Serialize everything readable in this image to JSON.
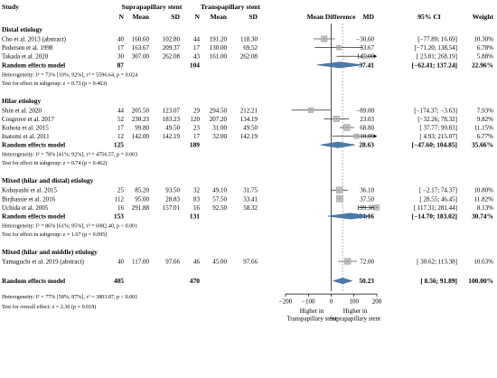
{
  "chart_data": {
    "type": "forest",
    "header": {
      "study": "Study",
      "group1": "Suprapapillary stent",
      "group2": "Transpapillary stent",
      "n": "N",
      "mean": "Mean",
      "sd": "SD",
      "plot": "Mean Difference",
      "md": "MD",
      "ci": "95% CI",
      "weight": "Weight"
    },
    "groups": [
      {
        "title": "Distal etiology",
        "studies": [
          {
            "name": "Cho et al. 2013 (abstract)",
            "n1": "40",
            "m1": "160.60",
            "sd1": "102.80",
            "n2": "44",
            "m2": "191.20",
            "sd2": "118.30",
            "md": -30.6,
            "lo": -77.89,
            "hi": 16.69,
            "md_t": "−30.60",
            "ci_t": "[−77.89; 16.69]",
            "w": 10.3,
            "w_t": "10.30%"
          },
          {
            "name": "Pedersen et al. 1998",
            "n1": "17",
            "m1": "163.67",
            "sd1": "209.37",
            "n2": "17",
            "m2": "130.00",
            "sd2": "69.52",
            "md": 33.67,
            "lo": -71.2,
            "hi": 138.54,
            "md_t": "33.67",
            "ci_t": "[−71.20; 138.54]",
            "w": 6.78,
            "w_t": "6.78%"
          },
          {
            "name": "Takada et al. 2020",
            "n1": "30",
            "m1": "307.00",
            "sd1": "262.08",
            "n2": "43",
            "m2": "161.00",
            "sd2": "262.08",
            "md": 146.0,
            "lo": 23.81,
            "hi": 268.19,
            "md_t": "146.00",
            "ci_t": "[ 23.81; 268.19]",
            "w": 5.88,
            "w_t": "5.88%"
          }
        ],
        "pooled": {
          "label": "Random effects model",
          "n1": "87",
          "n2": "104",
          "md": 37.41,
          "lo": -62.41,
          "hi": 137.24,
          "md_t": "37.41",
          "ci_t": "[−62.41; 137.24]",
          "w_t": "22.96%"
        },
        "heterogeneity": "Heterogeneity: I² = 73% [10%; 92%], τ² = 5596.64, p = 0.024",
        "subgroup_test": "Test for effect in subgroup: z = 0.73 (p = 0.463)"
      },
      {
        "title": "Hilar etiology",
        "studies": [
          {
            "name": "Shin et al. 2020",
            "n1": "44",
            "m1": "205.50",
            "sd1": "123.07",
            "n2": "29",
            "m2": "294.50",
            "sd2": "212.21",
            "md": -89.0,
            "lo": -174.37,
            "hi": -3.63,
            "md_t": "−89.00",
            "ci_t": "[−174.37; −3.63]",
            "w": 7.93,
            "w_t": "7.93%"
          },
          {
            "name": "Cosgrove et al. 2017",
            "n1": "52",
            "m1": "230.23",
            "sd1": "183.23",
            "n2": "120",
            "m2": "207.20",
            "sd2": "134.19",
            "md": 23.03,
            "lo": -32.26,
            "hi": 78.32,
            "md_t": "23.03",
            "ci_t": "[−32.26; 78.32]",
            "w": 9.82,
            "w_t": "9.82%"
          },
          {
            "name": "Kubota et al. 2015",
            "n1": "17",
            "m1": "99.80",
            "sd1": "49.50",
            "n2": "23",
            "m2": "31.00",
            "sd2": "49.50",
            "md": 68.8,
            "lo": 37.77,
            "hi": 99.83,
            "md_t": "68.80",
            "ci_t": "[ 37.77; 99.83]",
            "w": 11.15,
            "w_t": "11.15%"
          },
          {
            "name": "Inatomi et al. 2011",
            "n1": "12",
            "m1": "142.00",
            "sd1": "142.19",
            "n2": "17",
            "m2": "32.00",
            "sd2": "142.19",
            "md": 110.0,
            "lo": 4.93,
            "hi": 215.07,
            "md_t": "110.00",
            "ci_t": "[ 4.93; 215.07]",
            "w": 6.77,
            "w_t": "6.77%"
          }
        ],
        "pooled": {
          "label": "Random effects model",
          "n1": "125",
          "n2": "189",
          "md": 28.63,
          "lo": -47.6,
          "hi": 104.85,
          "md_t": "28.63",
          "ci_t": "[−47.60; 104.85]",
          "w_t": "35.66%"
        },
        "heterogeneity": "Heterogeneity: I² = 78% [41%; 92%], τ² = 4756.57, p = 0.003",
        "subgroup_test": "Test for effect in subgroup: z = 0.74 (p = 0.462)"
      },
      {
        "title": "Mixed (hilar and distal) etiology",
        "studies": [
          {
            "name": "Kobayashi et al. 2015",
            "n1": "25",
            "m1": "85.20",
            "sd1": "93.50",
            "n2": "32",
            "m2": "49.10",
            "sd2": "31.75",
            "md": 36.1,
            "lo": -2.17,
            "hi": 74.37,
            "md_t": "36.10",
            "ci_t": "[ −2.17; 74.37]",
            "w": 10.8,
            "w_t": "10.80%"
          },
          {
            "name": "Birjbassie et al. 2016",
            "n1": "112",
            "m1": "95.00",
            "sd1": "28.83",
            "n2": "83",
            "m2": "57.50",
            "sd2": "33.41",
            "md": 37.5,
            "lo": 28.55,
            "hi": 46.45,
            "md_t": "37.50",
            "ci_t": "[ 28.55; 46.45]",
            "w": 11.82,
            "w_t": "11.82%"
          },
          {
            "name": "Uchida et al. 2005",
            "n1": "16",
            "m1": "291.88",
            "sd1": "157.01",
            "n2": "16",
            "m2": "92.50",
            "sd2": "58.32",
            "md": 199.38,
            "lo": 117.31,
            "hi": 281.44,
            "md_t": "199.38",
            "ci_t": "[ 117.31; 281.44]",
            "w": 8.13,
            "w_t": "8.13%"
          }
        ],
        "pooled": {
          "label": "Random effects model",
          "n1": "153",
          "n2": "131",
          "md": 84.16,
          "lo": -14.7,
          "hi": 183.02,
          "md_t": "84.16",
          "ci_t": "[−14.70; 183.02]",
          "w_t": "30.74%"
        },
        "heterogeneity": "Heterogeneity: I² = 86% [61%; 95%], τ² = 6982.40, p < 0.001",
        "subgroup_test": "Test for effect in subgroup: z = 1.67 (p = 0.095)"
      },
      {
        "title": "Mixed (hilar and middle) etiology",
        "studies": [
          {
            "name": "Yamaguchi et al. 2019 (abstract)",
            "n1": "40",
            "m1": "117.00",
            "sd1": "97.66",
            "n2": "46",
            "m2": "45.00",
            "sd2": "97.66",
            "md": 72.0,
            "lo": 30.62,
            "hi": 113.38,
            "md_t": "72.00",
            "ci_t": "[ 30.62; 113.38]",
            "w": 10.63,
            "w_t": "10.63%"
          }
        ]
      }
    ],
    "overall": {
      "label": "Random effects model",
      "n1": "405",
      "n2": "470",
      "md": 50.23,
      "lo": 8.56,
      "hi": 91.89,
      "md_t": "50.23",
      "ci_t": "[ 8.56; 91.89]",
      "w_t": "100.00%"
    },
    "overall_heterogeneity": "Heterogeneity: I² = 77% [58%; 87%], τ² = 3803.87, p < 0.001",
    "overall_test": "Test for overall effect: z = 2.36 (p = 0.018)",
    "x_ticks": [
      -200,
      -100,
      0,
      100,
      200
    ],
    "x_tick_labels": [
      "−200",
      "−100",
      "0",
      "100",
      "200"
    ],
    "xlim": [
      -200,
      200
    ],
    "reference_line": 0,
    "pooled_line": 50.23,
    "favours_left": [
      "Higher in",
      "Transpapillary stent"
    ],
    "favours_right": [
      "Higher in",
      "Suprapapillary stent"
    ],
    "colors": {
      "square": "#c0c0c0",
      "diamond": "#4a7bab",
      "diamond_stroke": "#2f587f",
      "pooled_line": "#888888"
    }
  }
}
